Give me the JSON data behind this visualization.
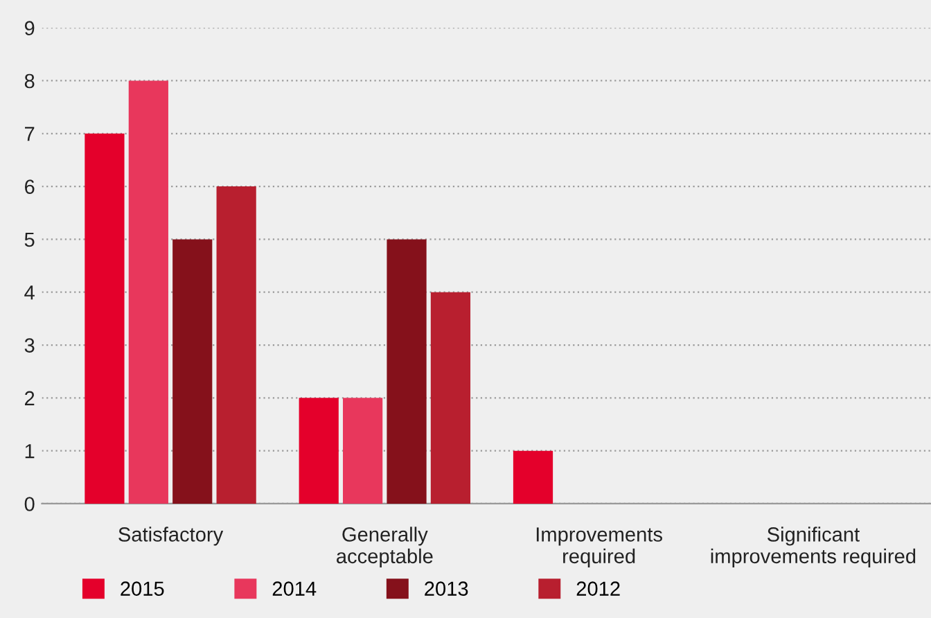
{
  "chart_data": {
    "type": "bar",
    "categories": [
      "Satisfactory",
      "Generally\nacceptable",
      "Improvements\nrequired",
      "Significant\nimprovements required"
    ],
    "series": [
      {
        "name": "2015",
        "color": "#e4002b",
        "values": [
          7,
          2,
          1,
          0
        ]
      },
      {
        "name": "2014",
        "color": "#e8375c",
        "values": [
          8,
          2,
          0,
          0
        ]
      },
      {
        "name": "2013",
        "color": "#85111b",
        "values": [
          5,
          5,
          0,
          0
        ]
      },
      {
        "name": "2012",
        "color": "#b81f2f",
        "values": [
          6,
          4,
          0,
          0
        ]
      }
    ],
    "ylim": [
      0,
      9
    ],
    "yticks": [
      0,
      1,
      2,
      3,
      4,
      5,
      6,
      7,
      8,
      9
    ],
    "grid": "y",
    "legend": "bottom"
  }
}
